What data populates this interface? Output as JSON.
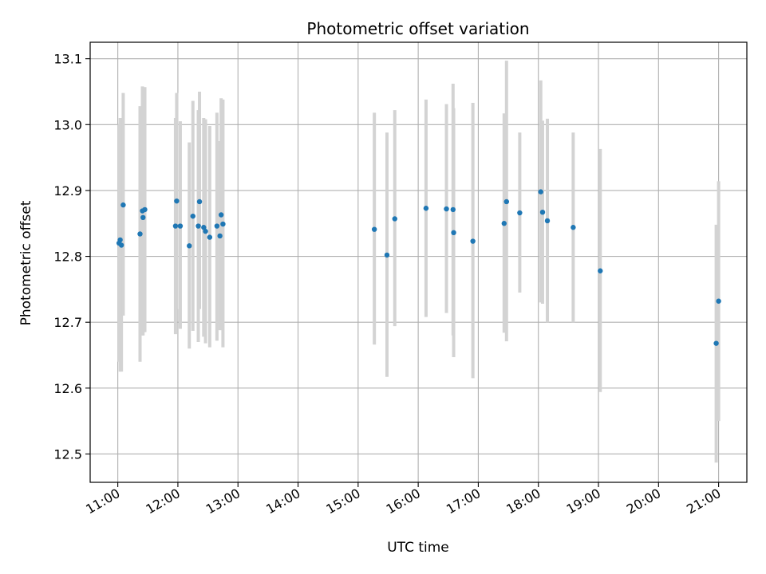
{
  "chart_data": {
    "type": "scatter",
    "title": "Photometric offset variation",
    "xlabel": "UTC time",
    "ylabel": "Photometric offset",
    "x_unit": "hours (UTC)",
    "xlim": [
      10.54,
      21.47
    ],
    "ylim": [
      12.457,
      13.125
    ],
    "grid": true,
    "x_ticks": [
      {
        "value": 11,
        "label": "11:00"
      },
      {
        "value": 12,
        "label": "12:00"
      },
      {
        "value": 13,
        "label": "13:00"
      },
      {
        "value": 14,
        "label": "14:00"
      },
      {
        "value": 15,
        "label": "15:00"
      },
      {
        "value": 16,
        "label": "16:00"
      },
      {
        "value": 17,
        "label": "17:00"
      },
      {
        "value": 18,
        "label": "18:00"
      },
      {
        "value": 19,
        "label": "19:00"
      },
      {
        "value": 20,
        "label": "20:00"
      },
      {
        "value": 21,
        "label": "21:00"
      }
    ],
    "y_ticks": [
      {
        "value": 12.5,
        "label": "12.5"
      },
      {
        "value": 12.6,
        "label": "12.6"
      },
      {
        "value": 12.7,
        "label": "12.7"
      },
      {
        "value": 12.8,
        "label": "12.8"
      },
      {
        "value": 12.9,
        "label": "12.9"
      },
      {
        "value": 13.0,
        "label": "13.0"
      },
      {
        "value": 13.1,
        "label": "13.1"
      }
    ],
    "colors": {
      "point": "#1f77b4",
      "errorbar": "#d3d3d3",
      "grid": "#b0b0b0"
    },
    "points": [
      {
        "x": 11.02,
        "y": 12.82,
        "lo": 12.64,
        "hi": 13.0
      },
      {
        "x": 11.04,
        "y": 12.825,
        "lo": 12.625,
        "hi": 13.01
      },
      {
        "x": 11.06,
        "y": 12.817,
        "lo": 12.625,
        "hi": 13.01
      },
      {
        "x": 11.09,
        "y": 12.878,
        "lo": 12.71,
        "hi": 13.048
      },
      {
        "x": 11.37,
        "y": 12.834,
        "lo": 12.64,
        "hi": 13.028
      },
      {
        "x": 11.41,
        "y": 12.869,
        "lo": 12.68,
        "hi": 13.058
      },
      {
        "x": 11.42,
        "y": 12.859,
        "lo": 12.68,
        "hi": 13.05
      },
      {
        "x": 11.45,
        "y": 12.871,
        "lo": 12.685,
        "hi": 13.057
      },
      {
        "x": 11.96,
        "y": 12.846,
        "lo": 12.682,
        "hi": 13.01
      },
      {
        "x": 11.98,
        "y": 12.884,
        "lo": 12.72,
        "hi": 13.048
      },
      {
        "x": 12.04,
        "y": 12.846,
        "lo": 12.69,
        "hi": 13.005
      },
      {
        "x": 12.19,
        "y": 12.816,
        "lo": 12.66,
        "hi": 12.973
      },
      {
        "x": 12.25,
        "y": 12.861,
        "lo": 12.687,
        "hi": 13.036
      },
      {
        "x": 12.34,
        "y": 12.846,
        "lo": 12.67,
        "hi": 13.022
      },
      {
        "x": 12.36,
        "y": 12.883,
        "lo": 12.72,
        "hi": 13.05
      },
      {
        "x": 12.43,
        "y": 12.844,
        "lo": 12.678,
        "hi": 13.01
      },
      {
        "x": 12.46,
        "y": 12.838,
        "lo": 12.668,
        "hi": 13.008
      },
      {
        "x": 12.53,
        "y": 12.829,
        "lo": 12.662,
        "hi": 12.998
      },
      {
        "x": 12.65,
        "y": 12.846,
        "lo": 12.672,
        "hi": 13.018
      },
      {
        "x": 12.7,
        "y": 12.831,
        "lo": 12.688,
        "hi": 12.975
      },
      {
        "x": 12.72,
        "y": 12.863,
        "lo": 12.688,
        "hi": 13.04
      },
      {
        "x": 12.75,
        "y": 12.849,
        "lo": 12.662,
        "hi": 13.038
      },
      {
        "x": 15.27,
        "y": 12.841,
        "lo": 12.666,
        "hi": 13.018
      },
      {
        "x": 15.48,
        "y": 12.802,
        "lo": 12.617,
        "hi": 12.988
      },
      {
        "x": 15.61,
        "y": 12.857,
        "lo": 12.694,
        "hi": 13.022
      },
      {
        "x": 16.13,
        "y": 12.873,
        "lo": 12.708,
        "hi": 13.038
      },
      {
        "x": 16.47,
        "y": 12.872,
        "lo": 12.714,
        "hi": 13.031
      },
      {
        "x": 16.58,
        "y": 12.871,
        "lo": 12.68,
        "hi": 13.062
      },
      {
        "x": 16.59,
        "y": 12.836,
        "lo": 12.647,
        "hi": 13.025
      },
      {
        "x": 16.91,
        "y": 12.823,
        "lo": 12.615,
        "hi": 13.033
      },
      {
        "x": 17.43,
        "y": 12.85,
        "lo": 12.684,
        "hi": 13.017
      },
      {
        "x": 17.47,
        "y": 12.883,
        "lo": 12.671,
        "hi": 13.097
      },
      {
        "x": 17.69,
        "y": 12.866,
        "lo": 12.745,
        "hi": 12.988
      },
      {
        "x": 18.04,
        "y": 12.898,
        "lo": 12.73,
        "hi": 13.067
      },
      {
        "x": 18.07,
        "y": 12.867,
        "lo": 12.728,
        "hi": 13.006
      },
      {
        "x": 18.15,
        "y": 12.854,
        "lo": 12.7,
        "hi": 13.009
      },
      {
        "x": 18.58,
        "y": 12.844,
        "lo": 12.7,
        "hi": 12.988
      },
      {
        "x": 19.03,
        "y": 12.778,
        "lo": 12.594,
        "hi": 12.963
      },
      {
        "x": 20.96,
        "y": 12.668,
        "lo": 12.487,
        "hi": 12.848
      },
      {
        "x": 21.0,
        "y": 12.732,
        "lo": 12.55,
        "hi": 12.914
      }
    ]
  }
}
